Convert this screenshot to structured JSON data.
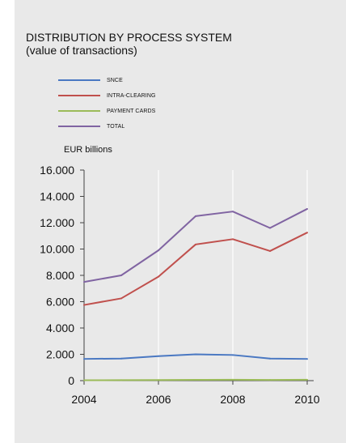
{
  "chart_data": {
    "type": "line",
    "title": "DISTRIBUTION BY PROCESS SYSTEM",
    "subtitle": "(value of transactions)",
    "ylabel": "EUR billions",
    "xlabel": "",
    "x": [
      2004,
      2005,
      2006,
      2007,
      2008,
      2009,
      2010
    ],
    "x_ticks": [
      "2004",
      "2006",
      "2008",
      "2010"
    ],
    "ylim": [
      0,
      16000
    ],
    "y_ticks": [
      "0",
      "2.000",
      "4.000",
      "6.000",
      "8.000",
      "10.000",
      "12.000",
      "14.000",
      "16.000"
    ],
    "grid": "vertical",
    "legend": "top-left",
    "series": [
      {
        "name": "SNCE",
        "color": "#4a78c2",
        "values": [
          1650,
          1680,
          1860,
          2000,
          1950,
          1680,
          1650
        ]
      },
      {
        "name": "INTRA-CLEARING",
        "color": "#c0504d",
        "values": [
          5750,
          6250,
          7900,
          10350,
          10750,
          9850,
          11250
        ]
      },
      {
        "name": "PAYMENT CARDS",
        "color": "#9bbb59",
        "values": [
          30,
          35,
          45,
          60,
          70,
          55,
          70
        ]
      },
      {
        "name": "TOTAL",
        "color": "#8064a2",
        "values": [
          7500,
          8000,
          9900,
          12500,
          12850,
          11600,
          13050
        ]
      }
    ]
  }
}
